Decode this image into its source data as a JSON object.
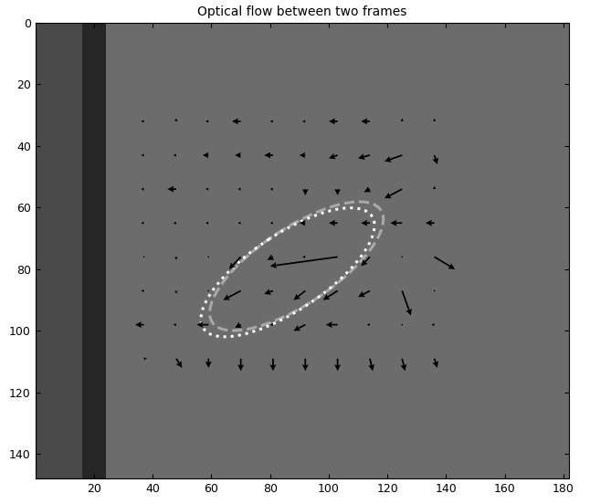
{
  "chart_data": {
    "type": "quiver",
    "title": "Optical flow between two frames",
    "xlim": [
      0,
      182
    ],
    "ylim": [
      148,
      0
    ],
    "xticks": [
      20,
      40,
      60,
      80,
      100,
      120,
      140,
      160,
      180
    ],
    "yticks": [
      0,
      20,
      40,
      60,
      80,
      100,
      120,
      140
    ],
    "color": "black",
    "arrows": {
      "x": [
        37,
        48,
        59,
        70,
        81,
        92,
        103,
        114,
        125,
        136,
        37,
        48,
        59,
        70,
        81,
        92,
        103,
        114,
        125,
        136,
        37,
        48,
        59,
        70,
        81,
        92,
        103,
        114,
        125,
        136,
        37,
        48,
        59,
        70,
        81,
        92,
        103,
        114,
        125,
        136,
        37,
        48,
        59,
        70,
        81,
        92,
        103,
        114,
        125,
        136,
        37,
        48,
        59,
        70,
        81,
        92,
        103,
        114,
        125,
        136,
        37,
        48,
        59,
        70,
        81,
        92,
        103,
        114,
        125,
        136,
        37,
        48,
        59,
        70,
        81,
        92,
        103,
        114,
        125,
        136
      ],
      "y": [
        32,
        32,
        32,
        32,
        32,
        32,
        32,
        32,
        32,
        32,
        43,
        43,
        43,
        43,
        43,
        43,
        43,
        43,
        43,
        43,
        54,
        54,
        54,
        54,
        54,
        54,
        54,
        54,
        54,
        54,
        65,
        65,
        65,
        65,
        65,
        65,
        65,
        65,
        65,
        65,
        76,
        76,
        76,
        76,
        76,
        76,
        76,
        76,
        76,
        76,
        87,
        87,
        87,
        87,
        87,
        87,
        87,
        87,
        87,
        87,
        98,
        98,
        98,
        98,
        98,
        98,
        98,
        98,
        98,
        98,
        109,
        109,
        109,
        109,
        109,
        109,
        109,
        109,
        109,
        109
      ],
      "u": [
        -1,
        0,
        -1,
        -3,
        -1,
        -1,
        -3,
        -3,
        0,
        0,
        -1,
        -1,
        -2,
        -2,
        -3,
        -2,
        -3,
        -4,
        -6,
        1,
        -1,
        -3,
        -1,
        -1,
        -1,
        0,
        0,
        -2,
        -6,
        0,
        -1,
        -1,
        -1,
        -1,
        -1,
        -2,
        -3,
        -3,
        -4,
        -3,
        0,
        0,
        0,
        -4,
        -2,
        -1,
        -23,
        -3,
        0,
        7,
        -1,
        0,
        0,
        -6,
        -3,
        -4,
        -5,
        -4,
        3,
        0,
        -3,
        -1,
        -4,
        -2,
        -1,
        -4,
        -4,
        -1,
        0,
        -1,
        1,
        2,
        0,
        0,
        0,
        0,
        0,
        1,
        1,
        1
      ],
      "v": [
        0,
        -1,
        0,
        0,
        0,
        0,
        0,
        0,
        -1,
        -1,
        0,
        0,
        0,
        0,
        0,
        0,
        1,
        1,
        2,
        3,
        0,
        0,
        0,
        0,
        0,
        2,
        2,
        1,
        3,
        -1,
        0,
        0,
        0,
        0,
        0,
        0,
        0,
        0,
        0,
        0,
        0,
        1,
        0,
        4,
        1,
        0,
        3,
        3,
        0,
        4,
        0,
        1,
        0,
        3,
        1,
        3,
        3,
        2,
        8,
        0,
        0,
        0,
        0,
        1,
        0,
        2,
        0,
        0,
        0,
        0,
        0,
        3,
        3,
        4,
        4,
        4,
        4,
        4,
        4,
        3
      ]
    },
    "ellipses": [
      {
        "center": [
          89,
          79
        ],
        "width": 68,
        "height": 25,
        "angle": 32,
        "color": "#a8a8a8",
        "line_style": "dashed"
      },
      {
        "center": [
          86,
          81
        ],
        "width": 68,
        "height": 25,
        "angle": 32,
        "color": "#ffffff",
        "line_style": "dotted"
      }
    ]
  }
}
